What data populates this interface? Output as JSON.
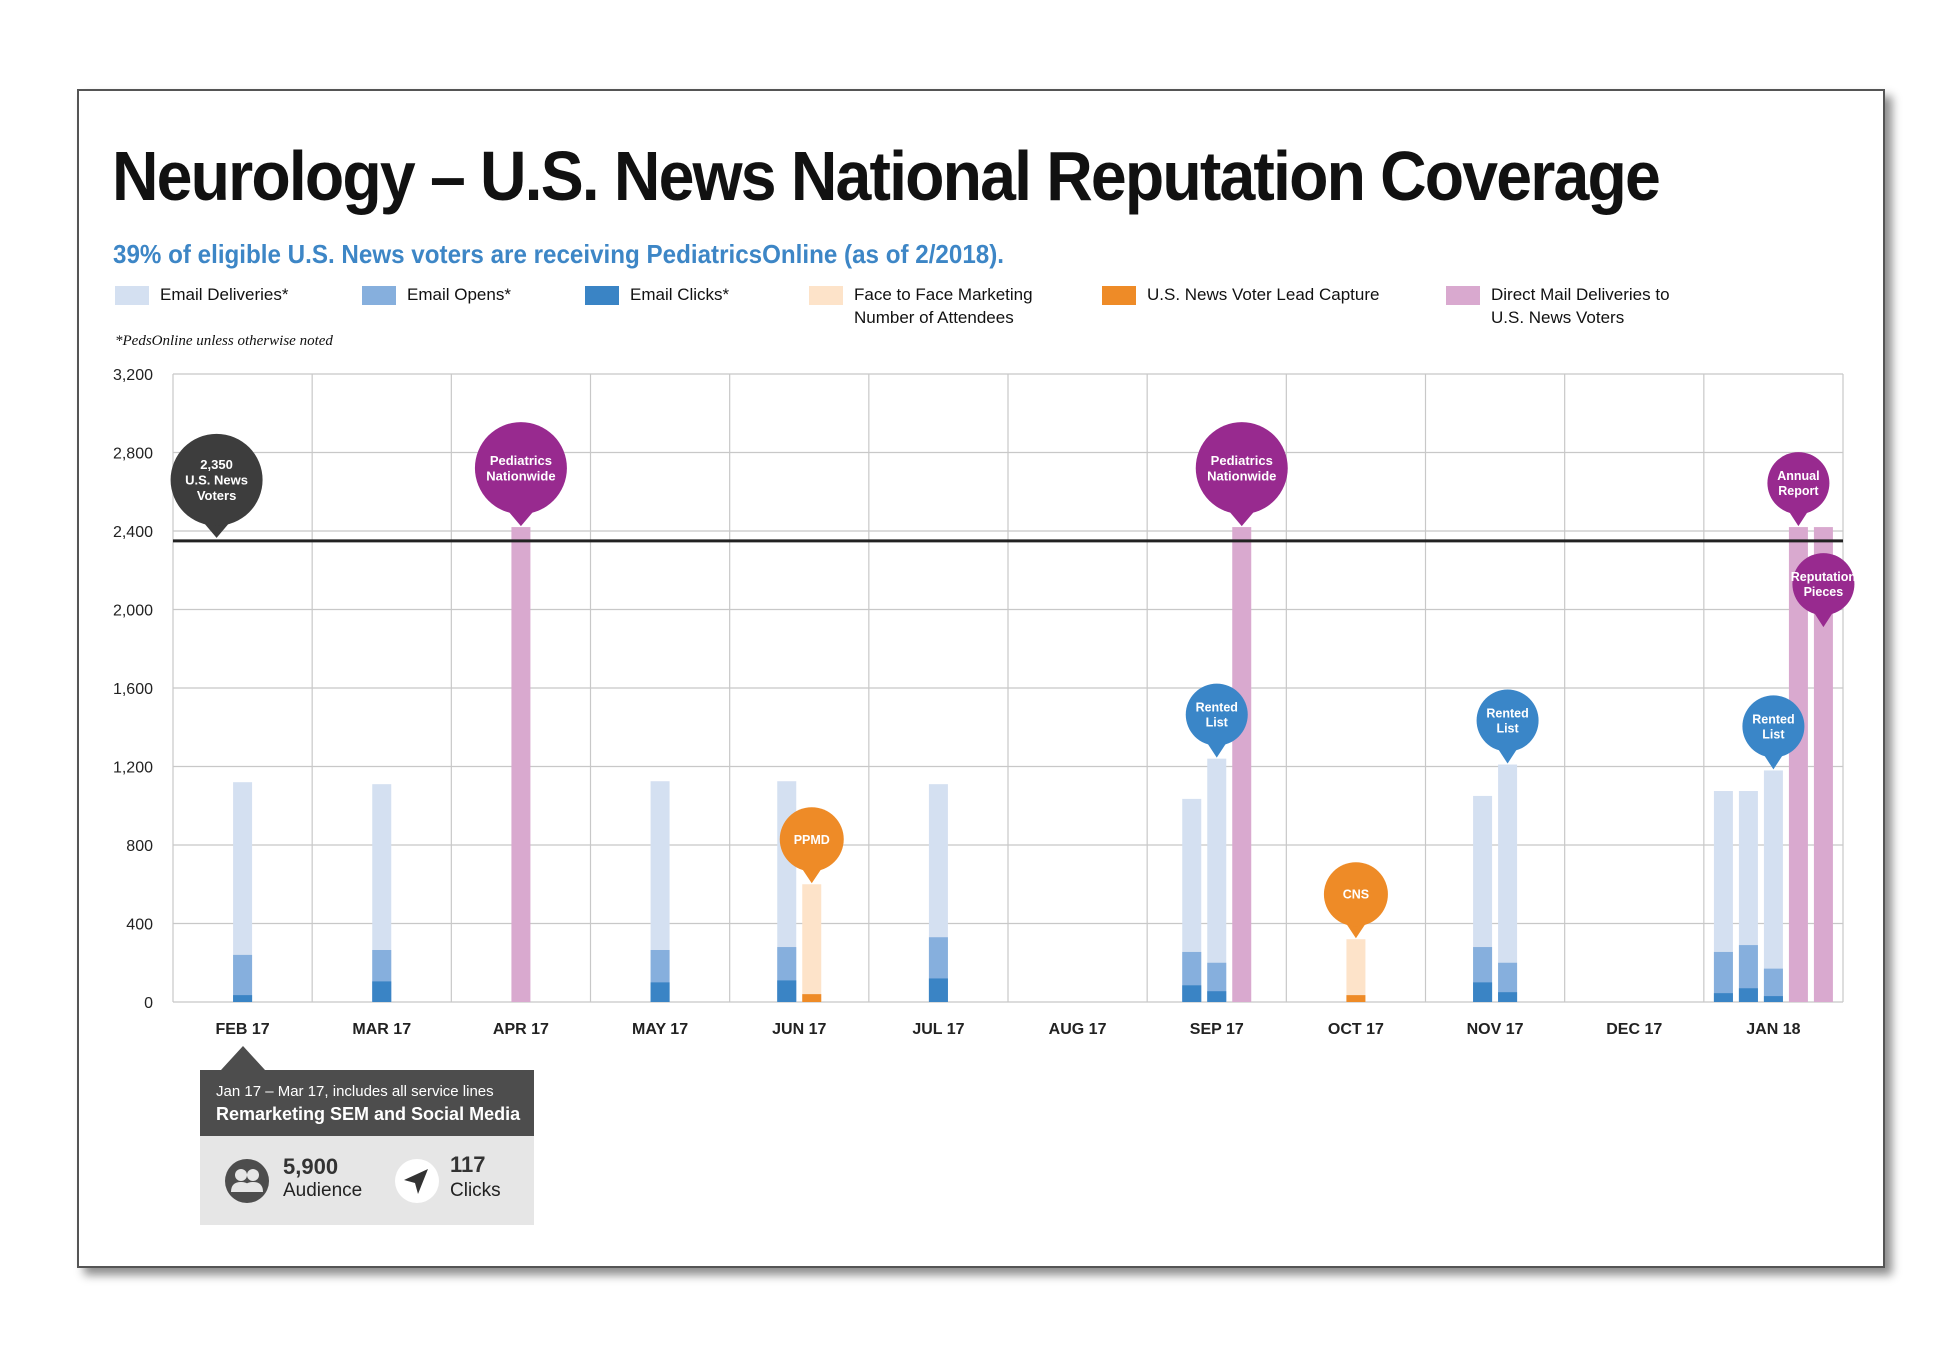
{
  "colors": {
    "email_deliveries": "#d4e0f1",
    "email_opens": "#86afdd",
    "email_clicks": "#3a84c5",
    "face_to_face": "#fde3c9",
    "lead_capture": "#ee8b27",
    "direct_mail": "#d9a9cf",
    "marker_purple": "#982a8f",
    "marker_blue": "#3a86c8",
    "marker_orange": "#ee8b27",
    "marker_dark": "#3d3d3d",
    "reference_line": "#222222",
    "grid": "#c8c8c8"
  },
  "header": {
    "title": "Neurology – U.S. News National Reputation Coverage",
    "subtitle": "39% of eligible U.S. News voters are receiving PediatricsOnline (as of 2/2018).",
    "footnote": "*PedsOnline unless otherwise noted"
  },
  "legend": [
    {
      "key": "email_deliveries",
      "lines": [
        "Email Deliveries*"
      ]
    },
    {
      "key": "email_opens",
      "lines": [
        "Email Opens*"
      ]
    },
    {
      "key": "email_clicks",
      "lines": [
        "Email Clicks*"
      ]
    },
    {
      "key": "face_to_face",
      "lines": [
        "Face to Face Marketing",
        "Number of Attendees"
      ]
    },
    {
      "key": "lead_capture",
      "lines": [
        "U.S. News Voter Lead Capture"
      ]
    },
    {
      "key": "direct_mail",
      "lines": [
        "Direct Mail Deliveries to",
        "U.S. News Voters"
      ]
    }
  ],
  "chart_data": {
    "type": "bar",
    "categories": [
      "FEB 17",
      "MAR 17",
      "APR 17",
      "MAY 17",
      "JUN 17",
      "JUL 17",
      "AUG 17",
      "SEP 17",
      "OCT 17",
      "NOV 17",
      "DEC 17",
      "JAN 18"
    ],
    "ylim": [
      0,
      3200
    ],
    "yticks": [
      0,
      400,
      800,
      1200,
      1600,
      2000,
      2400,
      2800,
      3200
    ],
    "ytick_labels": [
      "0",
      "400",
      "800",
      "1,200",
      "1,600",
      "2,000",
      "2,400",
      "2,800",
      "3,200"
    ],
    "grid": true,
    "reference_line": {
      "value": 2350,
      "label": "2,350 U.S. News Voters",
      "label_lines": [
        "2,350",
        "U.S. News",
        "Voters"
      ]
    },
    "bars": [
      {
        "category": "FEB 17",
        "slot": 0,
        "type": "email",
        "deliveries": 1120,
        "opens": 240,
        "clicks": 35
      },
      {
        "category": "MAR 17",
        "slot": 0,
        "type": "email",
        "deliveries": 1110,
        "opens": 265,
        "clicks": 105
      },
      {
        "category": "APR 17",
        "slot": 0,
        "type": "direct_mail",
        "value": 2420,
        "marker": {
          "lines": [
            "Pediatrics",
            "Nationwide"
          ],
          "color": "marker_purple",
          "size": "large"
        }
      },
      {
        "category": "MAY 17",
        "slot": 0,
        "type": "email",
        "deliveries": 1125,
        "opens": 265,
        "clicks": 100
      },
      {
        "category": "JUN 17",
        "slot": -1,
        "type": "email",
        "deliveries": 1125,
        "opens": 280,
        "clicks": 110
      },
      {
        "category": "JUN 17",
        "slot": 1,
        "type": "face_to_face",
        "attendees": 600,
        "lead_capture": 40,
        "marker": {
          "lines": [
            "PPMD"
          ],
          "color": "marker_orange",
          "size": "medium"
        }
      },
      {
        "category": "JUL 17",
        "slot": 0,
        "type": "email",
        "deliveries": 1110,
        "opens": 330,
        "clicks": 120
      },
      {
        "category": "SEP 17",
        "slot": -2,
        "type": "email",
        "deliveries": 1035,
        "opens": 255,
        "clicks": 85
      },
      {
        "category": "SEP 17",
        "slot": 0,
        "type": "email",
        "deliveries": 1240,
        "opens": 200,
        "clicks": 55,
        "marker": {
          "lines": [
            "Rented",
            "List"
          ],
          "color": "marker_blue",
          "size": "small"
        }
      },
      {
        "category": "SEP 17",
        "slot": 2,
        "type": "direct_mail",
        "value": 2420,
        "marker": {
          "lines": [
            "Pediatrics",
            "Nationwide"
          ],
          "color": "marker_purple",
          "size": "large"
        }
      },
      {
        "category": "OCT 17",
        "slot": 0,
        "type": "face_to_face",
        "attendees": 320,
        "lead_capture": 35,
        "marker": {
          "lines": [
            "CNS"
          ],
          "color": "marker_orange",
          "size": "medium"
        }
      },
      {
        "category": "NOV 17",
        "slot": -1,
        "type": "email",
        "deliveries": 1050,
        "opens": 280,
        "clicks": 100
      },
      {
        "category": "NOV 17",
        "slot": 1,
        "type": "email",
        "deliveries": 1210,
        "opens": 200,
        "clicks": 50,
        "marker": {
          "lines": [
            "Rented",
            "List"
          ],
          "color": "marker_blue",
          "size": "small"
        }
      },
      {
        "category": "JAN 18",
        "slot": -4,
        "type": "email",
        "deliveries": 1075,
        "opens": 255,
        "clicks": 45
      },
      {
        "category": "JAN 18",
        "slot": -2,
        "type": "email",
        "deliveries": 1075,
        "opens": 290,
        "clicks": 70
      },
      {
        "category": "JAN 18",
        "slot": 0,
        "type": "email",
        "deliveries": 1180,
        "opens": 170,
        "clicks": 30,
        "marker": {
          "lines": [
            "Rented",
            "List"
          ],
          "color": "marker_blue",
          "size": "small"
        }
      },
      {
        "category": "JAN 18",
        "slot": 2,
        "type": "direct_mail",
        "value": 2420,
        "marker": {
          "lines": [
            "Annual",
            "Report"
          ],
          "color": "marker_purple",
          "size": "small"
        }
      },
      {
        "category": "JAN 18",
        "slot": 4,
        "type": "direct_mail",
        "value": 2420,
        "marker": {
          "lines": [
            "Reputation",
            "Pieces"
          ],
          "color": "marker_purple",
          "size": "small",
          "placement": "low"
        }
      }
    ]
  },
  "callout": {
    "line1": "Jan 17 – Mar 17, includes all service lines",
    "line2": "Remarketing SEM and Social Media",
    "stats": [
      {
        "icon": "audience-icon",
        "value": "5,900",
        "label": "Audience"
      },
      {
        "icon": "cursor-arrow-icon",
        "value": "117",
        "label": "Clicks"
      }
    ]
  }
}
